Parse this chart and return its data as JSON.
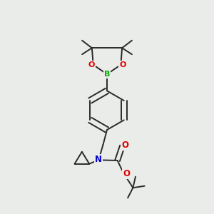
{
  "background_color": "#eaece9",
  "bond_color": "#2a2a2a",
  "atom_colors": {
    "O": "#e00000",
    "N": "#0000cc",
    "B": "#00aa00",
    "C": "#2a2a2a"
  },
  "figsize": [
    3.0,
    3.0
  ],
  "dpi": 100,
  "lw": 1.4
}
